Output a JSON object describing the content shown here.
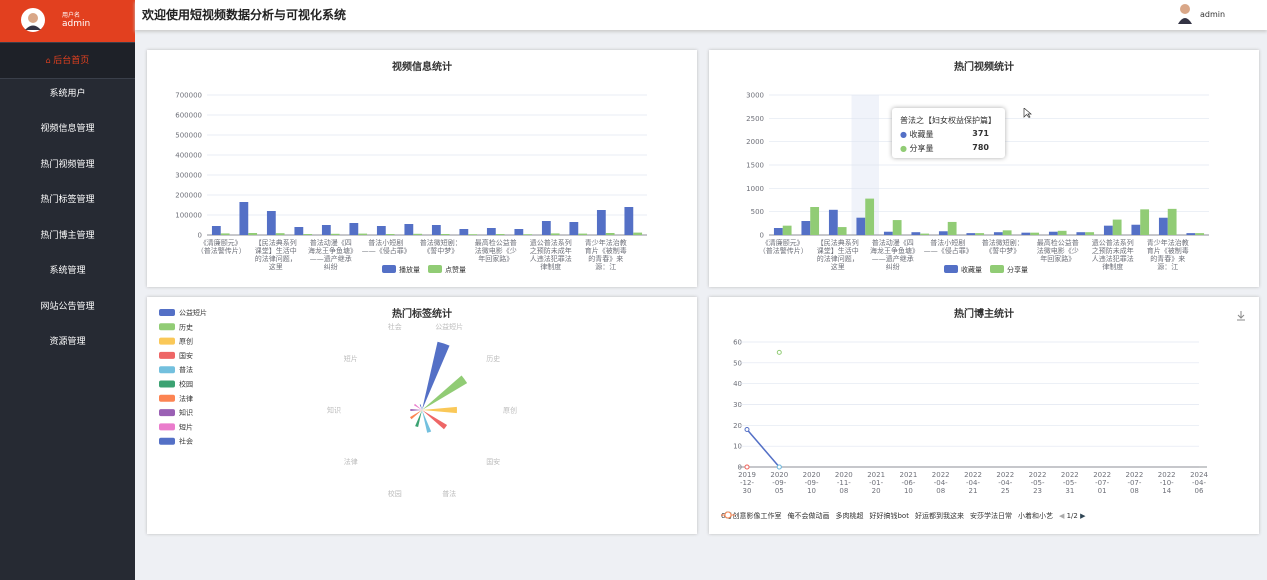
{
  "sidebar": {
    "user_label": "用户名",
    "user_name": "admin",
    "menu": [
      "后台首页",
      "系统用户",
      "视频信息管理",
      "热门视频管理",
      "热门标签管理",
      "热门博主管理",
      "系统管理",
      "网站公告管理",
      "资源管理"
    ]
  },
  "header": {
    "title": "欢迎使用短视频数据分析与可视化系统",
    "user": "admin"
  },
  "chart_data": [
    {
      "type": "bar",
      "title": "视频信息统计",
      "categories": [
        "《清廉颐元》（普法警传片）",
        null,
        "【民法典系列课堂】生活中的法律问题，这里",
        null,
        "普法动漫《四海龙王争鱼塘》——遗产继承纠纷",
        null,
        "普法小短剧——《侵占罪》",
        null,
        "普法微短剧：《誓中梦》",
        null,
        "最高检公益普法微电影《少年回家路》",
        null,
        "遗公普法系列之预防未成年人违法犯罪法律制度",
        null,
        "青少年法治教育片《被制毒的青春》来源：江",
        null
      ],
      "series": [
        {
          "name": "播放量",
          "color": "#5470c6",
          "values": [
            45000,
            165000,
            120000,
            40000,
            50000,
            60000,
            45000,
            55000,
            50000,
            30000,
            35000,
            30000,
            70000,
            65000,
            125000,
            140000
          ]
        },
        {
          "name": "点赞量",
          "color": "#91cc75",
          "values": [
            8000,
            10000,
            9000,
            5000,
            6000,
            7000,
            5000,
            6000,
            5000,
            4000,
            5000,
            4000,
            8000,
            7000,
            10000,
            12000
          ]
        }
      ],
      "ylim": [
        0,
        700000
      ],
      "yticks": [
        0,
        100000,
        200000,
        300000,
        400000,
        500000,
        600000,
        700000
      ]
    },
    {
      "type": "bar",
      "title": "热门视频统计",
      "categories": [
        "《清廉颐元》（普法警传片）",
        null,
        "【民法典系列课堂】生活中的法律问题，这里",
        "普法之【妇女权益保护篇】",
        "普法动漫《四海龙王争鱼塘》——遗产继承纠纷",
        null,
        "普法小短剧——《侵占罪》",
        null,
        "普法微短剧：《誓中梦》",
        null,
        "最高检公益普法微电影《少年回家路》",
        null,
        "遗公普法系列之预防未成年人违法犯罪法律制度",
        null,
        "青少年法治教育片《被制毒的青春》来源：江",
        null
      ],
      "series": [
        {
          "name": "收藏量",
          "color": "#5470c6",
          "values": [
            150,
            300,
            540,
            371,
            70,
            60,
            80,
            40,
            60,
            50,
            70,
            60,
            200,
            220,
            370,
            40
          ]
        },
        {
          "name": "分享量",
          "color": "#91cc75",
          "values": [
            200,
            600,
            170,
            780,
            320,
            30,
            280,
            40,
            100,
            50,
            90,
            60,
            330,
            550,
            560,
            40
          ]
        }
      ],
      "ylim": [
        0,
        3000
      ],
      "yticks": [
        0,
        500,
        1000,
        1500,
        2000,
        2500,
        3000
      ]
    },
    {
      "type": "polar",
      "title": "热门标签统计",
      "categories": [
        "公益短片",
        "历史",
        "原创",
        "国安",
        "普法",
        "校园",
        "法律",
        "知识",
        "短片",
        "社会"
      ],
      "colors": [
        "#5470c6",
        "#91cc75",
        "#fac858",
        "#ee6666",
        "#73c0de",
        "#3ba272",
        "#fc8452",
        "#9a60b4",
        "#ea7ccc",
        "#5470c6"
      ],
      "values": [
        60,
        45,
        30,
        25,
        20,
        15,
        12,
        10,
        8,
        5
      ]
    },
    {
      "type": "line",
      "title": "热门博主统计",
      "categories": [
        "2019-12-30",
        "2020-09-05",
        "2020-09-10",
        "2020-11-08",
        "2021-01-20",
        "2021-06-10",
        "2022-04-08",
        "2022-04-21",
        "2022-04-25",
        "2022-05-23",
        "2022-05-31",
        "2022-07-01",
        "2022-07-08",
        "2022-10-14",
        "2024-04-06"
      ],
      "series": [
        {
          "name": "6号创意影像工作室",
          "color": "#5470c6",
          "values": [
            18,
            0,
            null,
            null,
            null,
            null,
            null,
            null,
            null,
            null,
            null,
            null,
            null,
            null,
            null
          ]
        },
        {
          "name": "俺不会做动画",
          "color": "#91cc75",
          "values": [
            null,
            55,
            null,
            null,
            null,
            null,
            null,
            null,
            null,
            null,
            null,
            null,
            null,
            null,
            null
          ]
        },
        {
          "name": "多肉桃超",
          "color": "#fac858",
          "values": [
            0,
            null,
            null,
            null,
            null,
            null,
            null,
            null,
            null,
            null,
            null,
            null,
            null,
            null,
            null
          ]
        },
        {
          "name": "好好搞钱bot",
          "color": "#ee6666",
          "values": [
            0,
            null,
            null,
            null,
            null,
            null,
            null,
            null,
            null,
            null,
            null,
            null,
            null,
            null,
            null
          ]
        },
        {
          "name": "好运都到我这来",
          "color": "#73c0de",
          "values": [
            null,
            0,
            null,
            null,
            null,
            null,
            null,
            null,
            null,
            null,
            null,
            null,
            null,
            null,
            null
          ]
        },
        {
          "name": "安莎学法日常",
          "color": "#3ba272",
          "values": [
            null,
            null,
            null,
            null,
            null,
            null,
            null,
            null,
            null,
            null,
            null,
            null,
            null,
            null,
            null
          ]
        },
        {
          "name": "小着和小艺",
          "color": "#fc8452",
          "values": [
            null,
            null,
            null,
            null,
            null,
            null,
            null,
            null,
            null,
            null,
            null,
            null,
            null,
            null,
            null
          ]
        }
      ],
      "legend_page": "1/2",
      "ylim": [
        0,
        60
      ],
      "yticks": [
        0,
        10,
        20,
        30,
        40,
        50,
        60
      ]
    }
  ]
}
